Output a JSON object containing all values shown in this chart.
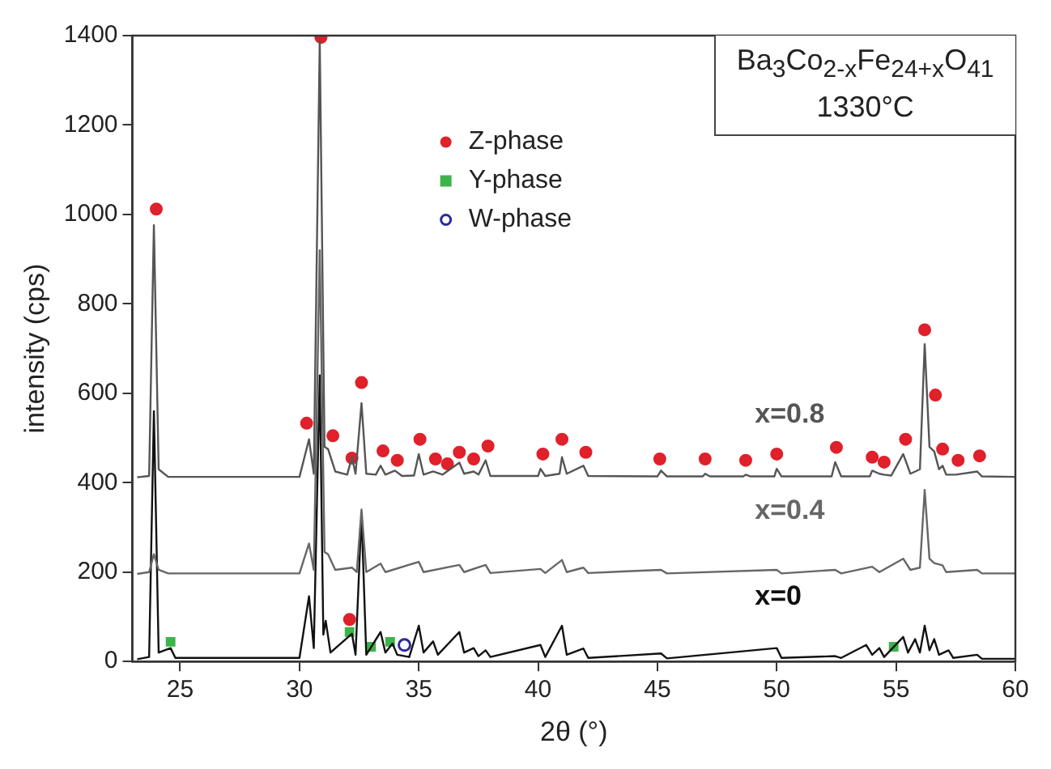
{
  "chart_data": {
    "type": "line",
    "xlabel": "2θ (°)",
    "ylabel": "intensity (cps)",
    "xlim": [
      23,
      60
    ],
    "xticks": [
      25,
      30,
      35,
      40,
      45,
      50,
      55,
      60
    ],
    "ylim": [
      0,
      1400
    ],
    "yticks": [
      0,
      200,
      400,
      600,
      800,
      1000,
      1200,
      1400
    ],
    "grid": false,
    "legend": "top",
    "annotations": [
      "Ba$_{3}$Co$_{2-x}$Fe$_{24+x}$O$_{41}$",
      "1330°C"
    ],
    "series": [
      {
        "name": "x=0.8",
        "color": "#555555",
        "marker": "none",
        "x": [
          23.2,
          23.7,
          23.9,
          24.1,
          24.5,
          30.0,
          30.4,
          30.6,
          30.85,
          31.05,
          31.2,
          31.5,
          32.0,
          32.2,
          32.35,
          32.6,
          32.8,
          33.2,
          33.4,
          33.6,
          34.0,
          34.3,
          34.8,
          35.0,
          35.2,
          35.6,
          36.0,
          36.7,
          36.9,
          37.3,
          37.5,
          37.8,
          38.0,
          40.0,
          40.1,
          40.3,
          40.9,
          41.0,
          41.2,
          41.9,
          42.1,
          45.0,
          45.15,
          45.4,
          46.9,
          47.0,
          47.2,
          48.6,
          48.7,
          48.9,
          49.9,
          50.0,
          50.2,
          52.3,
          52.45,
          52.7,
          53.9,
          54.0,
          54.3,
          54.5,
          54.8,
          55.3,
          55.6,
          56.0,
          56.2,
          56.4,
          56.6,
          56.8,
          56.95,
          57.1,
          57.5,
          58.4,
          58.6,
          60
        ],
        "values": [
          412,
          415,
          976,
          430,
          413,
          413,
          497,
          420,
          1390,
          480,
          475,
          425,
          418,
          457,
          420,
          578,
          420,
          418,
          438,
          418,
          427,
          415,
          416,
          464,
          418,
          425,
          418,
          445,
          420,
          425,
          418,
          450,
          415,
          415,
          431,
          415,
          420,
          457,
          420,
          438,
          415,
          414,
          427,
          414,
          414,
          420,
          414,
          414,
          418,
          414,
          414,
          431,
          414,
          414,
          446,
          414,
          414,
          427,
          420,
          418,
          416,
          464,
          420,
          430,
          710,
          480,
          470,
          430,
          438,
          418,
          418,
          425,
          414,
          413
        ]
      },
      {
        "name": "x=0.4",
        "color": "#666666",
        "marker": "none",
        "x": [
          23.2,
          23.7,
          23.9,
          24.1,
          24.5,
          30.0,
          30.4,
          30.6,
          30.85,
          31.05,
          31.2,
          31.5,
          32.2,
          32.4,
          32.6,
          32.8,
          33.4,
          33.6,
          35.0,
          35.2,
          36.7,
          36.9,
          37.8,
          38.0,
          40.1,
          40.3,
          41.0,
          41.2,
          41.9,
          42.1,
          45.15,
          45.4,
          50.0,
          50.2,
          52.45,
          52.7,
          54.0,
          54.3,
          55.3,
          55.6,
          56.0,
          56.2,
          56.4,
          56.6,
          56.95,
          57.1,
          58.4,
          58.6,
          60
        ],
        "values": [
          196,
          200,
          240,
          205,
          197,
          197,
          264,
          205,
          920,
          245,
          240,
          205,
          210,
          200,
          340,
          200,
          219,
          200,
          223,
          200,
          216,
          200,
          216,
          198,
          207,
          198,
          227,
          200,
          210,
          198,
          205,
          197,
          205,
          197,
          205,
          197,
          212,
          200,
          230,
          205,
          210,
          384,
          230,
          220,
          215,
          200,
          205,
          197,
          197
        ]
      },
      {
        "name": "x=0",
        "color": "#111111",
        "marker": "none",
        "x": [
          23.2,
          23.7,
          23.9,
          24.1,
          24.6,
          24.8,
          30.0,
          30.4,
          30.6,
          30.85,
          31.0,
          31.1,
          31.3,
          32.2,
          32.35,
          32.6,
          32.8,
          33.4,
          33.6,
          33.9,
          34.1,
          34.6,
          35.0,
          35.2,
          35.6,
          35.8,
          36.7,
          36.9,
          37.3,
          37.5,
          37.8,
          38.0,
          40.1,
          40.3,
          41.0,
          41.2,
          41.9,
          42.1,
          45.15,
          45.4,
          50.0,
          50.2,
          52.45,
          52.7,
          53.75,
          54.0,
          54.3,
          54.5,
          55.3,
          55.5,
          55.8,
          56.0,
          56.2,
          56.4,
          56.6,
          56.8,
          57.2,
          57.4,
          58.4,
          58.6,
          60
        ],
        "values": [
          5,
          10,
          560,
          20,
          30,
          8,
          8,
          146,
          30,
          640,
          60,
          91,
          20,
          62,
          15,
          330,
          15,
          66,
          20,
          40,
          15,
          10,
          80,
          20,
          45,
          15,
          66,
          20,
          30,
          12,
          25,
          10,
          37,
          10,
          80,
          15,
          29,
          8,
          18,
          7,
          30,
          8,
          12,
          8,
          37,
          15,
          30,
          10,
          55,
          20,
          50,
          20,
          80,
          25,
          50,
          15,
          25,
          8,
          15,
          6,
          6
        ]
      },
      {
        "name": "Z-phase",
        "type": "scatter",
        "color": "#e0202a",
        "marker": "circle",
        "x": [
          24.0,
          30.9,
          30.3,
          31.4,
          32.2,
          32.6,
          33.5,
          34.1,
          35.05,
          35.7,
          36.2,
          36.7,
          37.3,
          37.9,
          40.2,
          41.0,
          42.0,
          45.1,
          47.0,
          48.7,
          50.0,
          52.5,
          54.0,
          54.5,
          55.4,
          56.2,
          56.65,
          56.95,
          57.6,
          58.5,
          32.1
        ],
        "values": [
          1012,
          1396,
          533,
          505,
          455,
          624,
          471,
          450,
          497,
          453,
          442,
          468,
          453,
          482,
          464,
          497,
          468,
          453,
          453,
          450,
          464,
          479,
          457,
          446,
          497,
          742,
          596,
          475,
          450,
          460,
          94
        ]
      },
      {
        "name": "Y-phase",
        "type": "scatter",
        "color": "#3cb44b",
        "marker": "square",
        "x": [
          24.6,
          32.1,
          33.0,
          33.8,
          54.9
        ],
        "values": [
          44,
          66,
          33,
          44,
          33
        ]
      },
      {
        "name": "W-phase",
        "type": "scatter",
        "color": "#2a2a9a",
        "marker": "circle",
        "x": [
          34.4
        ],
        "values": [
          37
        ]
      }
    ]
  }
}
